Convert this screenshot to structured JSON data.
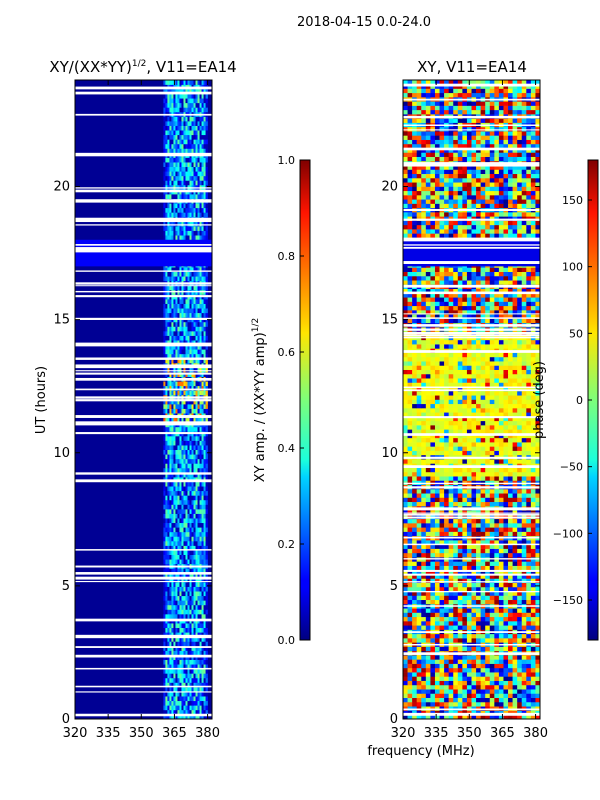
{
  "figure_title": "2018-04-15 0.0-24.0",
  "shared_xlabel": "frequency (MHz)",
  "chart_data": [
    {
      "type": "heatmap",
      "title": "XY/(XX*YY)",
      "title_superscript": "1/2",
      "title_suffix": ", V11=EA14",
      "xlabel": "",
      "ylabel": "UT (hours)",
      "xlim": [
        320,
        382
      ],
      "ylim": [
        0,
        24
      ],
      "xticks": [
        "320",
        "335",
        "350",
        "365",
        "380"
      ],
      "xtick_values": [
        320,
        335,
        350,
        365,
        380
      ],
      "yticks": [
        "0",
        "5",
        "10",
        "15",
        "20"
      ],
      "ytick_values": [
        0,
        5,
        10,
        15,
        20
      ],
      "colormap": "jet",
      "colorbar": {
        "label": "XY amp. / (XX*YY amp)",
        "label_superscript": "1/2",
        "range": [
          0.0,
          1.0
        ],
        "ticks": [
          "0.0",
          "0.2",
          "0.4",
          "0.6",
          "0.8",
          "1.0"
        ],
        "tick_values": [
          0.0,
          0.2,
          0.4,
          0.6,
          0.8,
          1.0
        ]
      },
      "description_values": {
        "background_level": 0.0,
        "active_band_mhz": [
          360,
          380
        ],
        "active_band_typical_level": 0.35,
        "peak_level": 0.8,
        "flagged_band_ut_hours": [
          17.0,
          18.0
        ]
      }
    },
    {
      "type": "heatmap",
      "title": "XY, V11=EA14",
      "xlabel": "frequency (MHz)",
      "ylabel": "",
      "xlim": [
        320,
        382
      ],
      "ylim": [
        0,
        24
      ],
      "xticks": [
        "320",
        "335",
        "350",
        "365",
        "380"
      ],
      "xtick_values": [
        320,
        335,
        350,
        365,
        380
      ],
      "yticks": [
        "0",
        "5",
        "10",
        "15",
        "20"
      ],
      "ytick_values": [
        0,
        5,
        10,
        15,
        20
      ],
      "colormap": "jet",
      "colorbar": {
        "label": "phase (deg)",
        "range": [
          -180,
          180
        ],
        "ticks": [
          "−150",
          "−100",
          "−50",
          "0",
          "50",
          "100",
          "150"
        ],
        "tick_values": [
          -150,
          -100,
          -50,
          0,
          50,
          100,
          150
        ]
      },
      "description_values": {
        "mid_day_phase_deg": 40,
        "flagged_band_ut_hours": [
          17.0,
          18.0
        ]
      }
    }
  ]
}
